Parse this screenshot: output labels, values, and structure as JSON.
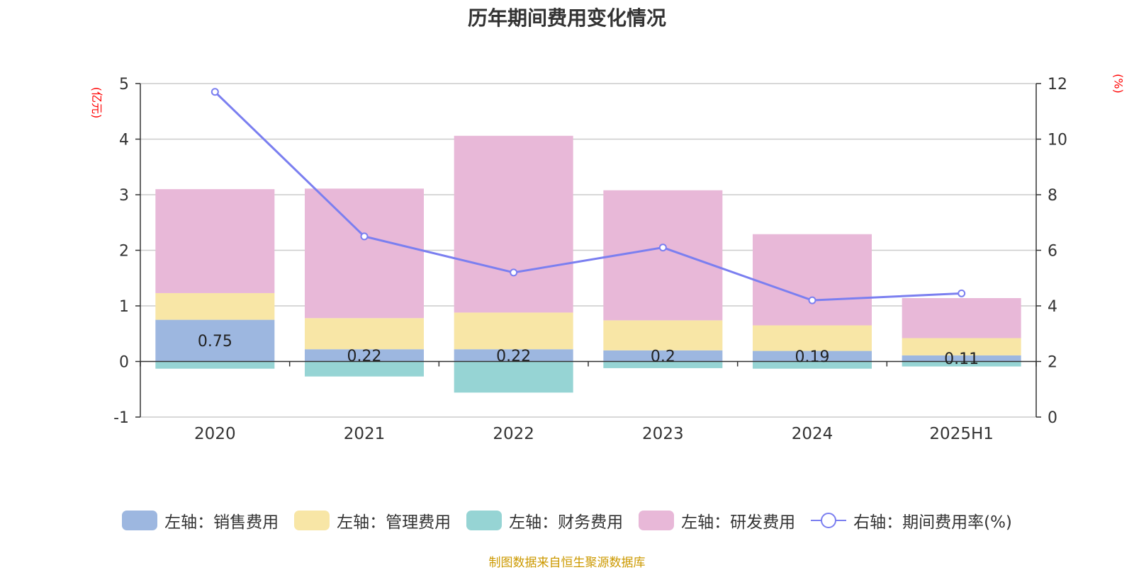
{
  "title": "历年期间费用变化情况",
  "left_unit": "(亿元)",
  "right_unit": "(%)",
  "source": "制图数据来自恒生聚源数据库",
  "chart_data": {
    "type": "bar",
    "stacked": true,
    "categories": [
      "2020",
      "2021",
      "2022",
      "2023",
      "2024",
      "2025H1"
    ],
    "ylim": [
      -1,
      5
    ],
    "yticks": [
      "-1",
      "0",
      "1",
      "2",
      "3",
      "4",
      "5"
    ],
    "y2lim": [
      0,
      12
    ],
    "y2ticks": [
      "0",
      "2",
      "4",
      "6",
      "8",
      "10",
      "12"
    ],
    "grid": true,
    "legend_position": "bottom",
    "series": [
      {
        "name": "左轴：销售费用",
        "axis": "left",
        "color": "#9db7e0",
        "values": [
          0.75,
          0.22,
          0.22,
          0.2,
          0.19,
          0.11
        ],
        "labels": [
          "0.75",
          "0.22",
          "0.22",
          "0.2",
          "0.19",
          "0.11"
        ]
      },
      {
        "name": "左轴：管理费用",
        "axis": "left",
        "color": "#f8e6a6",
        "values": [
          0.48,
          0.56,
          0.66,
          0.54,
          0.46,
          0.31
        ]
      },
      {
        "name": "左轴：财务费用",
        "axis": "left",
        "color": "#96d4d4",
        "values": [
          -0.13,
          -0.27,
          -0.56,
          -0.12,
          -0.13,
          -0.09
        ]
      },
      {
        "name": "左轴：研发费用",
        "axis": "left",
        "color": "#e8b8d8",
        "values": [
          1.87,
          2.33,
          3.18,
          2.34,
          1.64,
          0.72
        ]
      },
      {
        "name": "右轴：期间费用率(%)",
        "axis": "right",
        "type": "line",
        "color": "#7b7ff0",
        "values": [
          11.7,
          6.5,
          5.2,
          6.1,
          4.2,
          4.45
        ]
      }
    ]
  }
}
